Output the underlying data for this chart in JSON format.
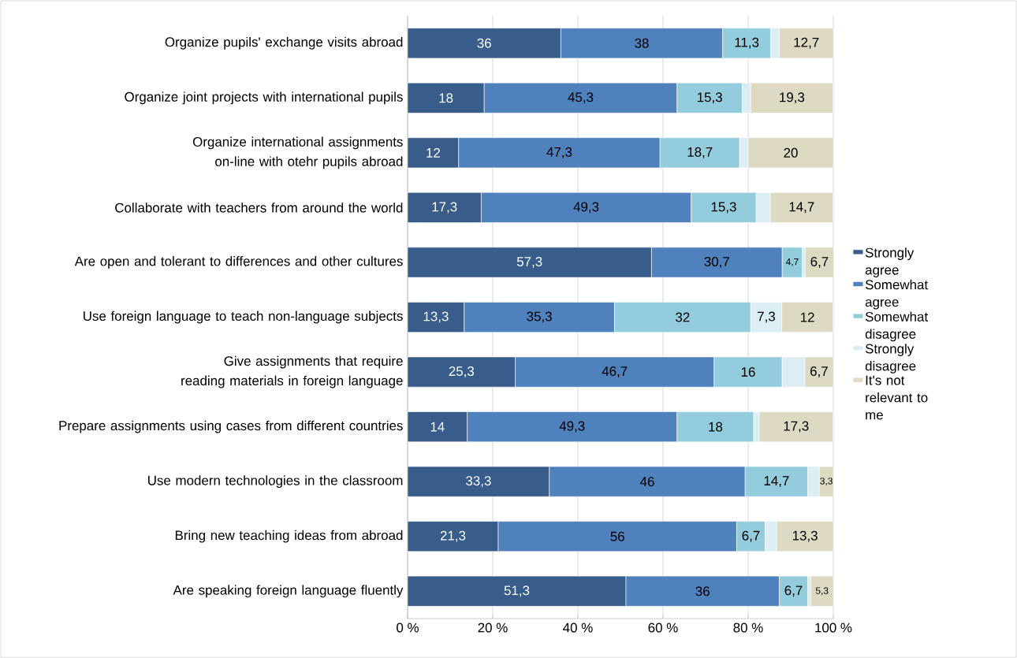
{
  "chart_data": {
    "type": "bar",
    "orientation": "horizontal",
    "stacked": true,
    "categories": [
      "Organize pupils' exchange visits abroad",
      "Organize joint projects with international pupils",
      "Organize international assignments on-line with otehr pupils abroad",
      "Collaborate with teachers from around the world",
      "Are open and tolerant to differences and other cultures",
      "Use foreign language to teach non-language subjects",
      "Give assignments that require reading materials in foreign language",
      "Prepare assignments using cases from different countries",
      "Use modern technologies in the classroom",
      "Bring new teaching ideas from abroad",
      "Are speaking foreign language fluently"
    ],
    "series": [
      {
        "name": "Strongly agree",
        "color": "#385d8a",
        "values": [
          36,
          18,
          12,
          17.3,
          57.3,
          13.3,
          25.3,
          14,
          33.3,
          21.3,
          51.3
        ],
        "value_labels": [
          "36",
          "18",
          "12",
          "17,3",
          "57,3",
          "13,3",
          "25,3",
          "14",
          "33,3",
          "21,3",
          "51,3"
        ]
      },
      {
        "name": "Somewhat agree",
        "color": "#4f81bd",
        "values": [
          38,
          45.3,
          47.3,
          49.3,
          30.7,
          35.3,
          46.7,
          49.3,
          46,
          56,
          36
        ],
        "value_labels": [
          "38",
          "45,3",
          "47,3",
          "49,3",
          "30,7",
          "35,3",
          "46,7",
          "49,3",
          "46",
          "56",
          "36"
        ]
      },
      {
        "name": "Somewhat disagree",
        "color": "#93cddd",
        "values": [
          11.3,
          15.3,
          18.7,
          15.3,
          4.7,
          32,
          16,
          18,
          14.7,
          6.7,
          6.7
        ],
        "value_labels": [
          "11,3",
          "15,3",
          "18,7",
          "15,3",
          "4,7",
          "32",
          "16",
          "18",
          "14,7",
          "6,7",
          "6,7"
        ]
      },
      {
        "name": "Strongly disagree",
        "color": "#dbeef4",
        "values": [
          2,
          2,
          2,
          3.3,
          0.7,
          7.3,
          5.3,
          1.3,
          2.7,
          2.7,
          0.7
        ],
        "value_labels": [
          null,
          null,
          null,
          null,
          null,
          "7,3",
          null,
          null,
          null,
          null,
          null
        ]
      },
      {
        "name": "It's not relevant to me",
        "color": "#ddd9c3",
        "values": [
          12.7,
          19.3,
          20,
          14.7,
          6.7,
          12,
          6.7,
          17.3,
          3.3,
          13.3,
          5.3
        ],
        "value_labels": [
          "12,7",
          "19,3",
          "20",
          "14,7",
          "6,7",
          "12",
          "6,7",
          "17,3",
          "3,3",
          "13,3",
          "5,3"
        ]
      }
    ],
    "xlim": [
      0,
      100
    ],
    "xticks": [
      {
        "value": 0,
        "label": "0 %"
      },
      {
        "value": 20,
        "label": "20 %"
      },
      {
        "value": 40,
        "label": "40 %"
      },
      {
        "value": 60,
        "label": "60 %"
      },
      {
        "value": 80,
        "label": "80 %"
      },
      {
        "value": 100,
        "label": "100 %"
      }
    ],
    "grid": "x",
    "legend": "right"
  }
}
